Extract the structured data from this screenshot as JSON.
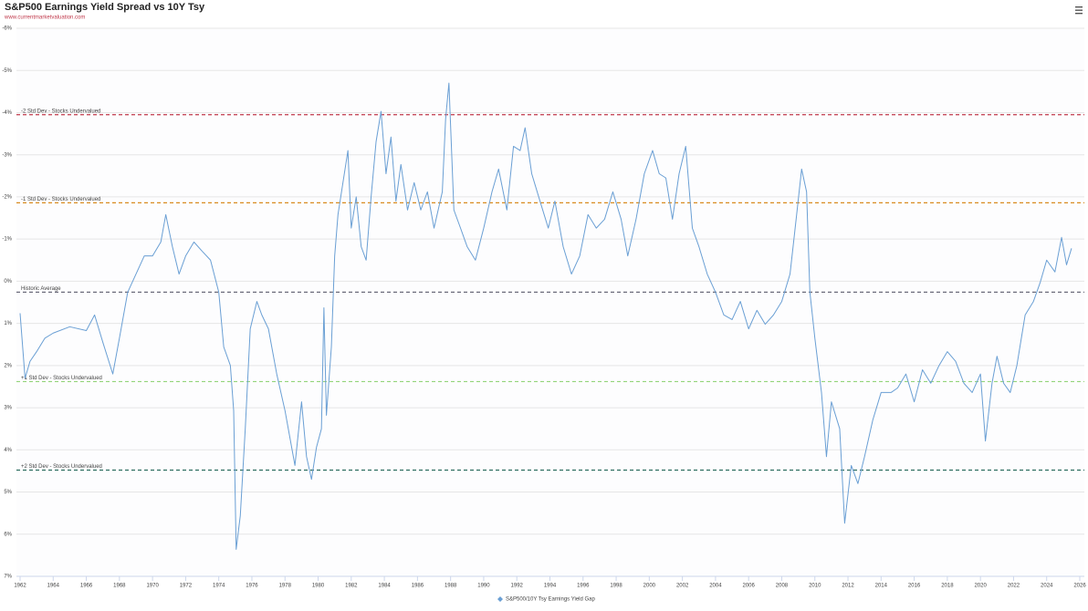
{
  "chart_data": {
    "type": "line",
    "title": "S&P500 Earnings Yield Spread vs 10Y Tsy",
    "subtitle": "www.currentmarketvaluation.com",
    "x": [
      1962.0,
      1962.3,
      1962.6,
      1963,
      1963.5,
      1964,
      1965,
      1966,
      1966.5,
      1967,
      1967.6,
      1968,
      1968.5,
      1969,
      1969.5,
      1970,
      1970.5,
      1970.8,
      1971.2,
      1971.6,
      1972,
      1972.5,
      1973,
      1973.5,
      1974,
      1974.3,
      1974.7,
      1974.9,
      1975.05,
      1975.3,
      1975.6,
      1975.9,
      1976.3,
      1976.6,
      1977,
      1977.5,
      1978,
      1978.3,
      1978.6,
      1979,
      1979.3,
      1979.6,
      1979.9,
      1980.2,
      1980.35,
      1980.5,
      1980.8,
      1981,
      1981.2,
      1981.5,
      1981.8,
      1982,
      1982.3,
      1982.6,
      1982.9,
      1983.2,
      1983.5,
      1983.8,
      1984.1,
      1984.4,
      1984.7,
      1985,
      1985.4,
      1985.8,
      1986.2,
      1986.6,
      1987,
      1987.5,
      1987.7,
      1987.9,
      1988.2,
      1988.6,
      1989,
      1989.5,
      1990,
      1990.5,
      1990.9,
      1991.4,
      1991.8,
      1992.2,
      1992.5,
      1992.9,
      1993.4,
      1993.9,
      1994.3,
      1994.8,
      1995.3,
      1995.8,
      1996.3,
      1996.8,
      1997.3,
      1997.8,
      1998.3,
      1998.7,
      1999.2,
      1999.7,
      2000.2,
      2000.6,
      2001,
      2001.4,
      2001.8,
      2002.2,
      2002.6,
      2003,
      2003.5,
      2004,
      2004.5,
      2005,
      2005.5,
      2006,
      2006.5,
      2007,
      2007.5,
      2008,
      2008.5,
      2008.9,
      2009.2,
      2009.5,
      2009.7,
      2010,
      2010.4,
      2010.7,
      2011,
      2011.5,
      2011.8,
      2012.2,
      2012.6,
      2013,
      2013.5,
      2014,
      2014.6,
      2015,
      2015.5,
      2016,
      2016.5,
      2017,
      2017.5,
      2018,
      2018.5,
      2019,
      2019.5,
      2020,
      2020.3,
      2020.7,
      2021,
      2021.4,
      2021.8,
      2022.2,
      2022.7,
      2023.2,
      2023.6,
      2024,
      2024.5,
      2024.9,
      2025.2,
      2025.5
    ],
    "series": [
      {
        "name": "S&P500/10Y Tsy Earnings Yield Gap",
        "color": "#6a9fd4",
        "values": [
          0.76,
          2.3,
          1.9,
          1.67,
          1.35,
          1.23,
          1.08,
          1.17,
          0.8,
          1.45,
          2.2,
          1.35,
          0.26,
          -0.17,
          -0.6,
          -0.6,
          -0.93,
          -1.58,
          -0.82,
          -0.17,
          -0.6,
          -0.93,
          -0.71,
          -0.5,
          0.26,
          1.56,
          2.0,
          3.07,
          6.36,
          5.56,
          3.5,
          1.13,
          0.48,
          0.8,
          1.13,
          2.2,
          3.07,
          3.72,
          4.37,
          2.86,
          4.16,
          4.7,
          3.94,
          3.5,
          0.63,
          3.18,
          1.56,
          -0.6,
          -1.58,
          -2.34,
          -3.1,
          -1.26,
          -2.0,
          -0.82,
          -0.5,
          -2.0,
          -3.31,
          -4.03,
          -2.55,
          -3.42,
          -1.9,
          -2.77,
          -1.69,
          -2.34,
          -1.69,
          -2.12,
          -1.26,
          -2.12,
          -3.85,
          -4.7,
          -1.69,
          -1.26,
          -0.82,
          -0.5,
          -1.26,
          -2.12,
          -2.66,
          -1.69,
          -3.2,
          -3.1,
          -3.64,
          -2.55,
          -1.9,
          -1.26,
          -1.9,
          -0.82,
          -0.17,
          -0.6,
          -1.58,
          -1.26,
          -1.47,
          -2.12,
          -1.47,
          -0.6,
          -1.47,
          -2.55,
          -3.1,
          -2.55,
          -2.45,
          -1.47,
          -2.55,
          -3.2,
          -1.26,
          -0.82,
          -0.17,
          0.26,
          0.8,
          0.91,
          0.48,
          1.13,
          0.69,
          1.02,
          0.8,
          0.48,
          -0.17,
          -1.58,
          -2.66,
          -2.12,
          0.26,
          1.35,
          2.64,
          4.16,
          2.86,
          3.5,
          5.74,
          4.37,
          4.8,
          4.16,
          3.29,
          2.64,
          2.64,
          2.53,
          2.2,
          2.86,
          2.1,
          2.42,
          2.0,
          1.67,
          1.9,
          2.42,
          2.64,
          2.2,
          3.79,
          2.42,
          1.78,
          2.42,
          2.64,
          2.0,
          0.8,
          0.48,
          0.04,
          -0.5,
          -0.22,
          -1.04,
          -0.39,
          -0.78
        ]
      }
    ],
    "reference_lines": [
      {
        "value": -3.95,
        "label": "-2 Std Dev - Stocks Undervalued",
        "color": "#c0394b"
      },
      {
        "value": -1.86,
        "label": "-1 Std Dev - Stocks Undervalued",
        "color": "#d98c1f"
      },
      {
        "value": 0.26,
        "label": "Historic Average",
        "color": "#6b6b7b"
      },
      {
        "value": 2.38,
        "label": "+1 Std Dev - Stocks Undervalued",
        "color": "#94d47a"
      },
      {
        "value": 4.48,
        "label": "+2 Std Dev - Stocks Undervalued",
        "color": "#2e6e60"
      }
    ],
    "xlim": [
      1962,
      2026
    ],
    "xticks": [
      1962,
      1964,
      1966,
      1968,
      1970,
      1972,
      1974,
      1976,
      1978,
      1980,
      1982,
      1984,
      1986,
      1988,
      1990,
      1992,
      1994,
      1996,
      1998,
      2000,
      2002,
      2004,
      2006,
      2008,
      2010,
      2012,
      2014,
      2016,
      2018,
      2020,
      2022,
      2024,
      2026
    ],
    "ylim": [
      -6,
      7
    ],
    "y_reversed": true,
    "yticks": [
      {
        "value": -6,
        "label": "-6%"
      },
      {
        "value": -5,
        "label": "-5%"
      },
      {
        "value": -4,
        "label": "-4%"
      },
      {
        "value": -3,
        "label": "-3%"
      },
      {
        "value": -2,
        "label": "-2%"
      },
      {
        "value": -1,
        "label": "-1%"
      },
      {
        "value": 0,
        "label": "0%"
      },
      {
        "value": 1,
        "label": "1%"
      },
      {
        "value": 2,
        "label": "2%"
      },
      {
        "value": 3,
        "label": "3%"
      },
      {
        "value": 4,
        "label": "4%"
      },
      {
        "value": 5,
        "label": "5%"
      },
      {
        "value": 6,
        "label": "6%"
      },
      {
        "value": 7,
        "label": "7%"
      }
    ],
    "grid": true
  }
}
